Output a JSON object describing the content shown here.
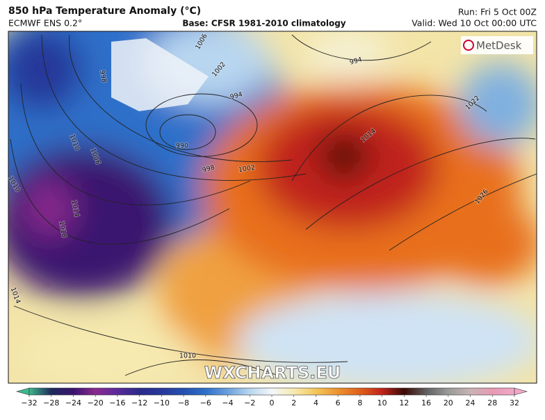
{
  "header": {
    "title": "850 hPa Temperature Anomaly (°C)",
    "model": "ECMWF ENS 0.2°",
    "base": "Base: CFSR 1981-2010 climatology",
    "run": "Run: Fri 5 Oct 00Z",
    "valid": "Valid: Wed 10 Oct 00:00 UTC"
  },
  "logo": "MetDesk",
  "watermark": "WXCHARTS.EU",
  "isobar_labels": [
    1006,
    1002,
    998,
    994,
    990,
    998,
    1002,
    994,
    1010,
    1006,
    1014,
    1018,
    1010,
    1014,
    1014,
    1022,
    1026,
    1010
  ],
  "colorbar": {
    "ticks": [
      {
        "value": -32,
        "label": "−32"
      },
      {
        "value": -28,
        "label": "−28"
      },
      {
        "value": -24,
        "label": "−24"
      },
      {
        "value": -20,
        "label": "−20"
      },
      {
        "value": -16,
        "label": "−16"
      },
      {
        "value": -12,
        "label": "−12"
      },
      {
        "value": -10,
        "label": "−10"
      },
      {
        "value": -8,
        "label": "−8"
      },
      {
        "value": -6,
        "label": "−6"
      },
      {
        "value": -4,
        "label": "−4"
      },
      {
        "value": -2,
        "label": "−2"
      },
      0,
      2,
      4,
      6,
      8,
      10,
      12,
      16,
      20,
      24,
      28,
      32
    ],
    "colors": [
      "#3db88c",
      "#1f2a5a",
      "#3a1470",
      "#8a2a8e",
      "#5a2a9a",
      "#2a2a8a",
      "#28389a",
      "#2450b0",
      "#2f6fc9",
      "#6aa0dc",
      "#b8d6f0",
      "#f4f7fa",
      "#f6eab0",
      "#f4c65a",
      "#ec9230",
      "#e0601a",
      "#c0231a",
      "#3a0a05",
      "#606060",
      "#9a9a9a",
      "#c8b4b4",
      "#e89ab4",
      "#f0a8c8"
    ]
  }
}
